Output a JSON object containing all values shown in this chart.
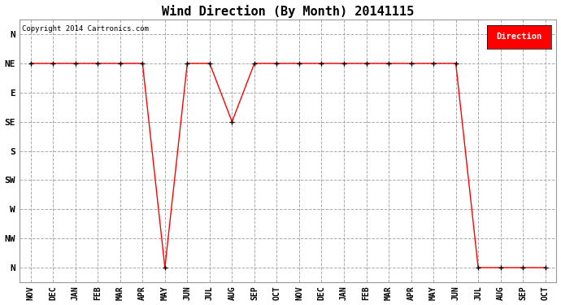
{
  "title": "Wind Direction (By Month) 20141115",
  "copyright": "Copyright 2014 Cartronics.com",
  "legend_label": "Direction",
  "legend_bg": "#ff0000",
  "legend_text_color": "#ffffff",
  "x_labels": [
    "NOV",
    "DEC",
    "JAN",
    "FEB",
    "MAR",
    "APR",
    "MAY",
    "JUN",
    "JUL",
    "AUG",
    "SEP",
    "OCT",
    "NOV",
    "DEC",
    "JAN",
    "FEB",
    "MAR",
    "APR",
    "MAY",
    "JUN",
    "JUL",
    "AUG",
    "SEP",
    "OCT"
  ],
  "y_labels": [
    "N",
    "NW",
    "W",
    "SW",
    "S",
    "SE",
    "E",
    "NE",
    "N"
  ],
  "y_tick_values": [
    0,
    1,
    2,
    3,
    4,
    5,
    6,
    7,
    8
  ],
  "line_color": "#ff0000",
  "marker_color": "#000000",
  "grid_color": "#aaaaaa",
  "bg_color": "#ffffff",
  "title_fontsize": 11,
  "data_x": [
    0,
    1,
    2,
    3,
    4,
    5,
    6,
    7,
    8,
    9,
    10,
    11,
    12,
    13,
    14,
    15,
    16,
    17,
    18,
    19,
    20,
    21,
    22,
    23
  ],
  "data_y": [
    7,
    7,
    7,
    7,
    7,
    7,
    0,
    7,
    7,
    5,
    7,
    7,
    7,
    7,
    7,
    7,
    7,
    7,
    7,
    7,
    0,
    0,
    0,
    0
  ]
}
